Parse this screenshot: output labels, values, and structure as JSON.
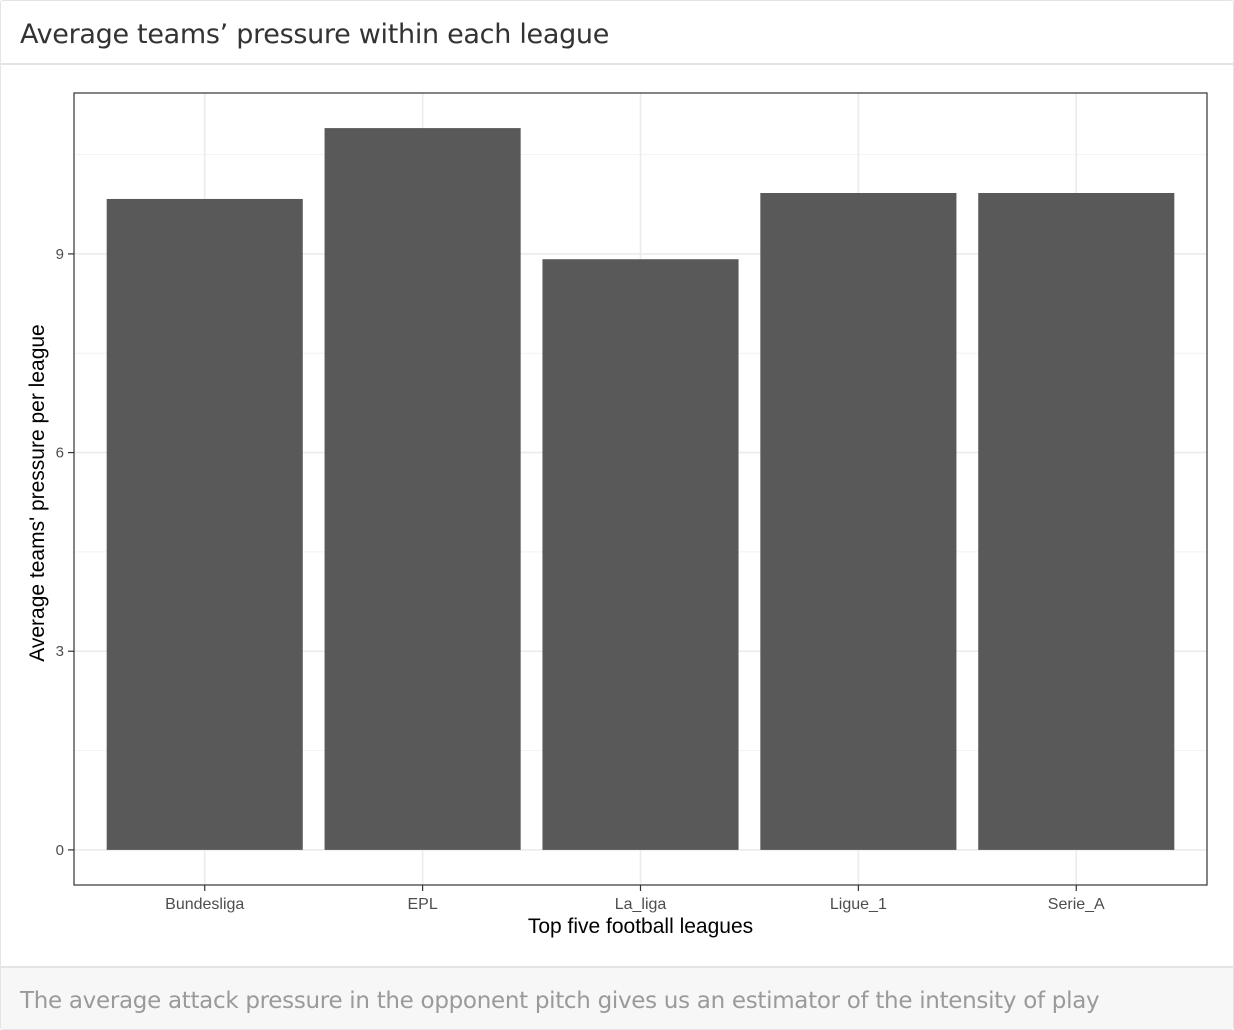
{
  "card": {
    "title": "Average teams’ pressure within each league",
    "caption": "The average attack pressure in the opponent pitch gives us an estimator of the intensity of play"
  },
  "chart_data": {
    "type": "bar",
    "categories": [
      "Bundesliga",
      "EPL",
      "La_liga",
      "Ligue_1",
      "Serie_A"
    ],
    "values": [
      9.83,
      10.9,
      8.92,
      9.92,
      9.92
    ],
    "xlabel": "Top five football leagues",
    "ylabel": "Average teams' pressure per league",
    "ylim": [
      -0.53,
      11.43
    ],
    "yticks": [
      0,
      3,
      6,
      9
    ],
    "grid": true,
    "bar_color": "#595959",
    "legend": "none"
  }
}
